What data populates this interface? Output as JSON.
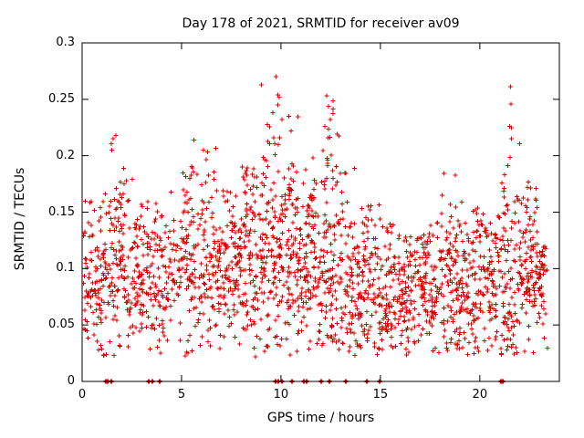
{
  "chart_data": {
    "type": "scatter",
    "title": "Day 178 of 2021, SRMTID for receiver av09",
    "xlabel": "GPS time / hours",
    "ylabel": "SRMTID / TECUs",
    "xlim": [
      0,
      24
    ],
    "ylim": [
      0,
      0.3
    ],
    "xticks": {
      "values": [
        0,
        5,
        10,
        15,
        20
      ],
      "labels": [
        "0",
        "5",
        "10",
        "15",
        "20"
      ]
    },
    "yticks": {
      "values": [
        0,
        0.05,
        0.1,
        0.15,
        0.2,
        0.25,
        0.3
      ],
      "labels": [
        "0",
        "0.05",
        "0.1",
        "0.15",
        "0.2",
        "0.25",
        "0.3"
      ]
    },
    "grid": false,
    "legend": "none",
    "marker": "plus",
    "marker_color": "#e10000",
    "axis_color": "#000000",
    "seed": 178,
    "min_y_clamp": 0.022,
    "bins": [
      {
        "x0": 0.05,
        "x1": 1.0,
        "n": 90,
        "mean": 0.085,
        "sd": 0.03,
        "max": 0.16
      },
      {
        "x0": 1.0,
        "x1": 2.0,
        "n": 100,
        "mean": 0.1,
        "sd": 0.035,
        "max": 0.22
      },
      {
        "x0": 2.0,
        "x1": 3.0,
        "n": 95,
        "mean": 0.095,
        "sd": 0.03,
        "max": 0.19
      },
      {
        "x0": 3.0,
        "x1": 4.0,
        "n": 90,
        "mean": 0.09,
        "sd": 0.03,
        "max": 0.16
      },
      {
        "x0": 4.0,
        "x1": 5.0,
        "n": 70,
        "mean": 0.09,
        "sd": 0.025,
        "max": 0.17
      },
      {
        "x0": 5.0,
        "x1": 6.0,
        "n": 95,
        "mean": 0.11,
        "sd": 0.035,
        "max": 0.22
      },
      {
        "x0": 6.0,
        "x1": 7.0,
        "n": 100,
        "mean": 0.1,
        "sd": 0.035,
        "max": 0.21
      },
      {
        "x0": 7.0,
        "x1": 8.0,
        "n": 100,
        "mean": 0.095,
        "sd": 0.03,
        "max": 0.17
      },
      {
        "x0": 8.0,
        "x1": 9.0,
        "n": 110,
        "mean": 0.1,
        "sd": 0.035,
        "max": 0.19
      },
      {
        "x0": 9.0,
        "x1": 10.0,
        "n": 120,
        "mean": 0.115,
        "sd": 0.045,
        "max": 0.27
      },
      {
        "x0": 10.0,
        "x1": 11.0,
        "n": 115,
        "mean": 0.11,
        "sd": 0.04,
        "max": 0.24
      },
      {
        "x0": 11.0,
        "x1": 12.0,
        "n": 110,
        "mean": 0.1,
        "sd": 0.035,
        "max": 0.2
      },
      {
        "x0": 12.0,
        "x1": 13.0,
        "n": 115,
        "mean": 0.105,
        "sd": 0.045,
        "max": 0.25
      },
      {
        "x0": 13.0,
        "x1": 14.0,
        "n": 100,
        "mean": 0.09,
        "sd": 0.035,
        "max": 0.19
      },
      {
        "x0": 14.0,
        "x1": 15.0,
        "n": 95,
        "mean": 0.08,
        "sd": 0.03,
        "max": 0.16
      },
      {
        "x0": 15.0,
        "x1": 16.0,
        "n": 90,
        "mean": 0.075,
        "sd": 0.025,
        "max": 0.14
      },
      {
        "x0": 16.0,
        "x1": 17.0,
        "n": 95,
        "mean": 0.075,
        "sd": 0.025,
        "max": 0.13
      },
      {
        "x0": 17.0,
        "x1": 18.0,
        "n": 100,
        "mean": 0.08,
        "sd": 0.025,
        "max": 0.15
      },
      {
        "x0": 18.0,
        "x1": 19.0,
        "n": 105,
        "mean": 0.085,
        "sd": 0.03,
        "max": 0.19
      },
      {
        "x0": 19.0,
        "x1": 20.0,
        "n": 100,
        "mean": 0.08,
        "sd": 0.03,
        "max": 0.16
      },
      {
        "x0": 20.0,
        "x1": 21.0,
        "n": 95,
        "mean": 0.085,
        "sd": 0.028,
        "max": 0.15
      },
      {
        "x0": 21.0,
        "x1": 22.0,
        "n": 100,
        "mean": 0.095,
        "sd": 0.04,
        "max": 0.26
      },
      {
        "x0": 22.0,
        "x1": 23.0,
        "n": 110,
        "mean": 0.1,
        "sd": 0.03,
        "max": 0.18
      },
      {
        "x0": 23.0,
        "x1": 23.4,
        "n": 40,
        "mean": 0.08,
        "sd": 0.025,
        "max": 0.12
      }
    ],
    "outliers": [
      [
        9.75,
        0.27
      ],
      [
        9.92,
        0.252
      ],
      [
        9.85,
        0.245
      ],
      [
        9.6,
        0.238
      ],
      [
        10.05,
        0.232
      ],
      [
        10.4,
        0.235
      ],
      [
        12.3,
        0.253
      ],
      [
        12.38,
        0.244
      ],
      [
        12.2,
        0.226
      ],
      [
        21.55,
        0.261
      ],
      [
        21.57,
        0.246
      ],
      [
        21.5,
        0.226
      ],
      [
        21.6,
        0.215
      ],
      [
        1.55,
        0.215
      ],
      [
        1.5,
        0.205
      ],
      [
        5.62,
        0.214
      ],
      [
        6.1,
        0.205
      ]
    ],
    "zero_marks_x": [
      1.2,
      1.3,
      1.45,
      3.35,
      3.55,
      3.9,
      9.75,
      9.85,
      10.05,
      10.55,
      11.15,
      11.3,
      12.0,
      12.45,
      13.25,
      14.3,
      14.95,
      21.05,
      21.15
    ]
  },
  "labels": {
    "title": "Day 178 of 2021, SRMTID for receiver av09",
    "xlabel": "GPS time / hours",
    "ylabel": "SRMTID / TECUs"
  }
}
